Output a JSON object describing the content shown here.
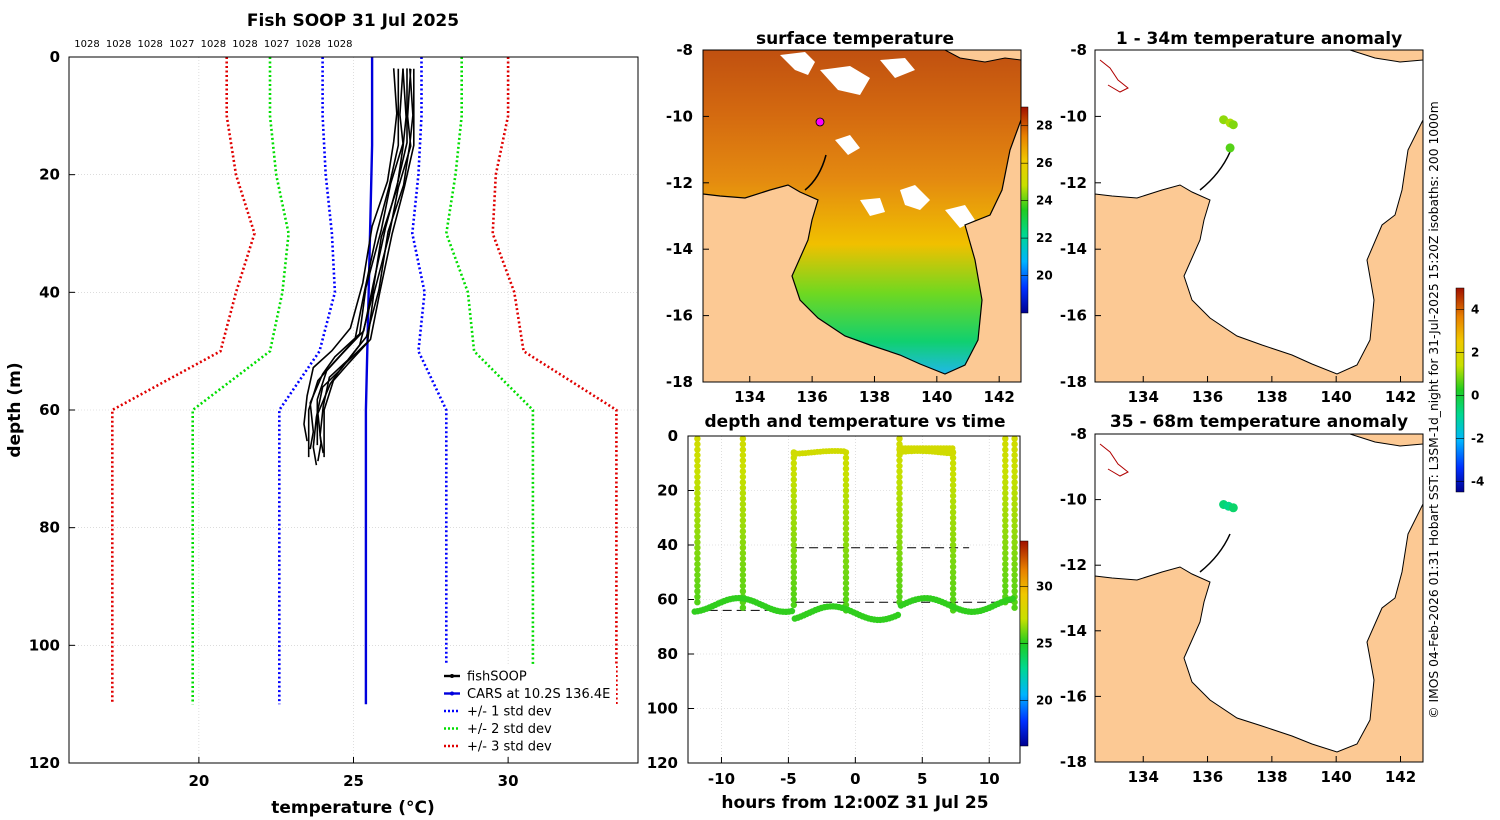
{
  "chart_data": [
    {
      "id": "profile",
      "type": "line",
      "title": "Fish SOOP 31 Jul 2025",
      "xlabel": "temperature (°C)",
      "ylabel": "depth (m)",
      "xlim": [
        15.8,
        34.2
      ],
      "ylim": [
        120,
        0
      ],
      "xticks": [
        "20",
        "25",
        "30"
      ],
      "yticks": [
        "0",
        "20",
        "40",
        "60",
        "80",
        "100",
        "120"
      ],
      "density_labels": [
        "1028",
        "1028",
        "1028",
        "1027",
        "1028",
        "1028",
        "1027",
        "1028",
        "1028"
      ],
      "cars_mean": {
        "depth": [
          0,
          15,
          60,
          110
        ],
        "temp": [
          25.6,
          25.6,
          25.4,
          25.4
        ]
      },
      "std_envelopes": [
        {
          "name": "+/- 1 std dev",
          "color": "#0000ff",
          "depth": [
            0,
            10,
            20,
            30,
            40,
            50,
            60,
            110
          ],
          "left": [
            24.0,
            24.0,
            24.1,
            24.3,
            24.4,
            23.9,
            22.6,
            22.6
          ],
          "right": [
            27.2,
            27.2,
            27.1,
            26.9,
            27.3,
            27.1,
            28.0,
            28.0
          ]
        },
        {
          "name": "+/- 2 std dev",
          "color": "#00dd00",
          "depth": [
            0,
            10,
            20,
            30,
            40,
            50,
            60,
            110
          ],
          "left": [
            22.3,
            22.3,
            22.5,
            22.9,
            22.7,
            22.3,
            19.8,
            19.8
          ],
          "right": [
            28.5,
            28.5,
            28.3,
            28.0,
            28.7,
            28.9,
            30.8,
            30.8
          ]
        },
        {
          "name": "+/- 3 std dev",
          "color": "#e00000",
          "depth": [
            0,
            10,
            20,
            30,
            40,
            50,
            60,
            110
          ],
          "left": [
            20.9,
            20.9,
            21.2,
            21.8,
            21.2,
            20.7,
            17.2,
            17.2
          ],
          "right": [
            30.0,
            30.0,
            29.6,
            29.5,
            30.2,
            30.5,
            33.5,
            33.5
          ]
        }
      ],
      "fish_soop_casts": {
        "depth": [
          2,
          10,
          15,
          22,
          30,
          40,
          48,
          52,
          55,
          60,
          65,
          68
        ],
        "temp_base": [
          26.6,
          26.7,
          26.6,
          26.4,
          25.9,
          25.6,
          25.2,
          24.6,
          24.0,
          23.8,
          23.7,
          23.8
        ],
        "offsets": [
          -0.3,
          -0.2,
          -0.1,
          0.0,
          0.08,
          0.15,
          0.22,
          0.3
        ],
        "depth_scale": [
          0.96,
          1.0,
          0.98,
          1.02,
          0.97,
          1.01,
          0.99,
          1.0
        ]
      },
      "legend": [
        "fishSOOP",
        "CARS at 10.2S 136.4E",
        "+/- 1 std dev",
        "+/- 2 std dev",
        "+/- 3 std dev"
      ]
    },
    {
      "id": "surface",
      "type": "heatmap",
      "title": "surface temperature",
      "xlim": [
        132.5,
        142.7
      ],
      "ylim": [
        -18,
        -8
      ],
      "xticks": [
        "134",
        "136",
        "138",
        "140",
        "142"
      ],
      "yticks": [
        "-8",
        "-10",
        "-12",
        "-14",
        "-16",
        "-18"
      ],
      "colorbar_ticks": [
        "28",
        "26",
        "24",
        "22",
        "20"
      ],
      "colorbar_range": [
        18,
        29
      ]
    },
    {
      "id": "depth_time",
      "type": "scatter",
      "title": "depth and temperature vs time",
      "xlabel": "hours from 12:00Z 31 Jul 25",
      "xlim": [
        -12.5,
        12.3
      ],
      "ylim": [
        120,
        0
      ],
      "xticks": [
        "-10",
        "-5",
        "0",
        "5",
        "10"
      ],
      "yticks": [
        "0",
        "20",
        "40",
        "60",
        "80",
        "100",
        "120"
      ],
      "colorbar_ticks": [
        "30",
        "25",
        "20"
      ],
      "colorbar_range": [
        16,
        34
      ],
      "cast_times": [
        -11.8,
        -8.4,
        -4.6,
        -0.7,
        3.3,
        7.3,
        11.2,
        11.9
      ],
      "bottom_depth": 62,
      "dashed_lines": [
        {
          "depth": 41,
          "from": -4.5,
          "to": 8.5
        },
        {
          "depth": 64,
          "from": -12,
          "to": -4.5
        },
        {
          "depth": 61,
          "from": -4.5,
          "to": 12
        }
      ]
    },
    {
      "id": "anomaly_shallow",
      "type": "scatter",
      "title": "1 - 34m temperature anomaly",
      "xlim": [
        132.5,
        142.7
      ],
      "ylim": [
        -18,
        -8
      ],
      "xticks": [
        "134",
        "136",
        "138",
        "140",
        "142"
      ],
      "yticks": [
        "-8",
        "-10",
        "-12",
        "-14",
        "-16",
        "-18"
      ],
      "points": [
        [
          136.5,
          -10.1,
          1.0
        ],
        [
          136.7,
          -10.2,
          1.2
        ],
        [
          136.8,
          -10.25,
          0.9
        ],
        [
          136.7,
          -10.95,
          0.6
        ]
      ]
    },
    {
      "id": "anomaly_deep",
      "type": "scatter",
      "title": "35 - 68m temperature anomaly",
      "xlim": [
        132.5,
        142.7
      ],
      "ylim": [
        -18,
        -8
      ],
      "xticks": [
        "134",
        "136",
        "138",
        "140",
        "142"
      ],
      "yticks": [
        "-8",
        "-10",
        "-12",
        "-14",
        "-16",
        "-18"
      ],
      "points": [
        [
          136.5,
          -10.15,
          -0.6
        ],
        [
          136.65,
          -10.2,
          -0.8
        ],
        [
          136.8,
          -10.25,
          -0.5
        ]
      ],
      "colorbar_ticks": [
        "4",
        "2",
        "0",
        "-2",
        "-4"
      ],
      "colorbar_range": [
        -4.5,
        5
      ]
    }
  ],
  "side_text": "© IMOS 04-Feb-2026 01:31 Hobart SST: L3SM-1d_night for 31-Jul-2025 15:20Z isobaths: 200  1000m",
  "colors": {
    "land": "#fcc994",
    "cast": "#000000",
    "cars": "#0000dd",
    "isobath": "#b00000"
  }
}
